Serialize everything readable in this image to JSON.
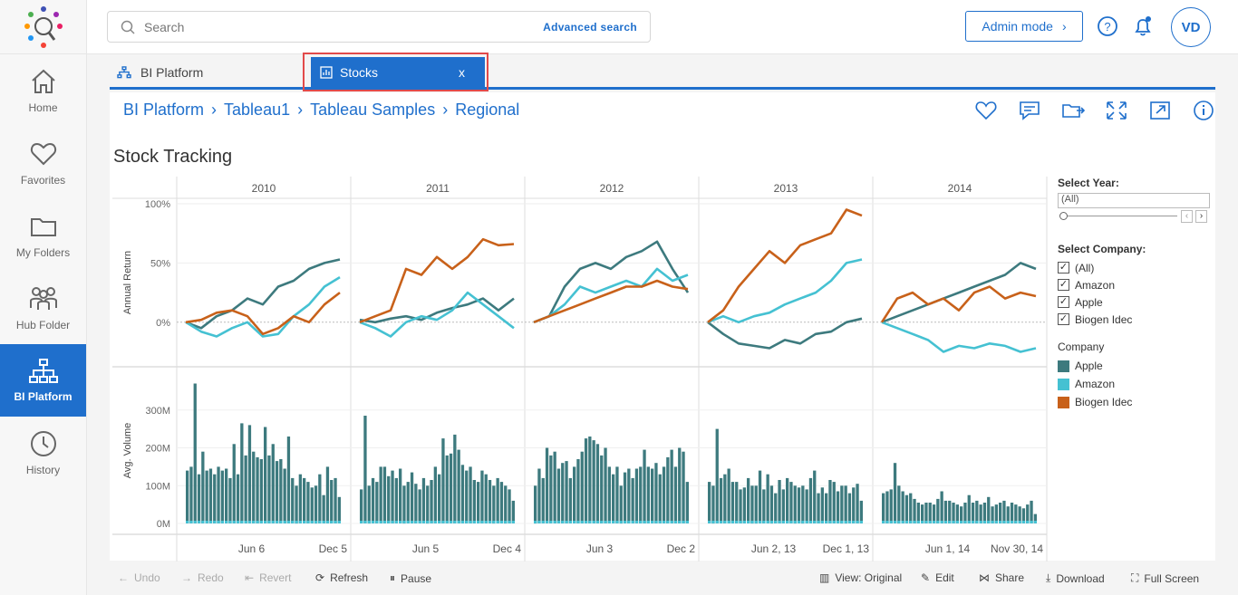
{
  "sidebar": {
    "items": [
      {
        "label": "Home",
        "icon": "home-icon"
      },
      {
        "label": "Favorites",
        "icon": "heart-icon"
      },
      {
        "label": "My Folders",
        "icon": "folder-icon"
      },
      {
        "label": "Hub Folder",
        "icon": "people-icon"
      },
      {
        "label": "BI Platform",
        "icon": "hierarchy-icon",
        "active": true
      },
      {
        "label": "History",
        "icon": "clock-icon"
      }
    ]
  },
  "search": {
    "placeholder": "Search",
    "advanced": "Advanced search"
  },
  "header": {
    "admin_mode": "Admin mode",
    "avatar": "VD"
  },
  "tabs": [
    {
      "label": "BI Platform"
    },
    {
      "label": "Stocks",
      "close": "x"
    }
  ],
  "breadcrumb": [
    "BI Platform",
    "Tableau1",
    "Tableau Samples",
    "Regional"
  ],
  "dashboard": {
    "title": "Stock Tracking",
    "filters": {
      "year_label": "Select Year:",
      "year_value": "(All)",
      "company_label": "Select Company:",
      "company_options": [
        "(All)",
        "Amazon",
        "Apple",
        "Biogen Idec"
      ],
      "legend_title": "Company",
      "legend": [
        {
          "name": "Apple",
          "color": "#3d7a7e"
        },
        {
          "name": "Amazon",
          "color": "#45c1d2"
        },
        {
          "name": "Biogen Idec",
          "color": "#c8611a"
        }
      ]
    }
  },
  "chart_data": [
    {
      "type": "line",
      "ylabel": "Annual Return",
      "yticks": [
        "100%",
        "50%",
        "0%"
      ],
      "ylim": [
        -0.3,
        1.0
      ],
      "columns": [
        "2010",
        "2011",
        "2012",
        "2013",
        "2014"
      ],
      "series": [
        {
          "name": "Apple",
          "color": "#3d7a7e",
          "values": [
            [
              0,
              -0.05,
              0.05,
              0.1,
              0.2,
              0.15,
              0.3,
              0.35,
              0.45,
              0.5,
              0.53
            ],
            [
              0.02,
              0.0,
              0.03,
              0.05,
              0.02,
              0.08,
              0.12,
              0.15,
              0.2,
              0.1,
              0.2
            ],
            [
              0,
              0.05,
              0.3,
              0.45,
              0.5,
              0.45,
              0.55,
              0.6,
              0.68,
              0.45,
              0.25
            ],
            [
              0,
              -0.1,
              -0.18,
              -0.2,
              -0.22,
              -0.15,
              -0.18,
              -0.1,
              -0.08,
              0.0,
              0.03
            ],
            [
              0,
              0.05,
              0.1,
              0.15,
              0.2,
              0.25,
              0.3,
              0.35,
              0.4,
              0.5,
              0.45
            ]
          ]
        },
        {
          "name": "Amazon",
          "color": "#45c1d2",
          "values": [
            [
              0,
              -0.08,
              -0.12,
              -0.05,
              0.0,
              -0.12,
              -0.1,
              0.05,
              0.15,
              0.3,
              0.38
            ],
            [
              0,
              -0.05,
              -0.12,
              0.0,
              0.05,
              0.02,
              0.1,
              0.25,
              0.15,
              0.05,
              -0.05
            ],
            [
              0,
              0.05,
              0.15,
              0.3,
              0.25,
              0.3,
              0.35,
              0.3,
              0.45,
              0.35,
              0.4
            ],
            [
              0.0,
              0.05,
              0.0,
              0.05,
              0.08,
              0.15,
              0.2,
              0.25,
              0.35,
              0.5,
              0.53
            ],
            [
              0,
              -0.05,
              -0.1,
              -0.15,
              -0.25,
              -0.2,
              -0.22,
              -0.18,
              -0.2,
              -0.25,
              -0.22
            ]
          ]
        },
        {
          "name": "Biogen Idec",
          "color": "#c8611a",
          "values": [
            [
              0,
              0.02,
              0.08,
              0.1,
              0.05,
              -0.1,
              -0.05,
              0.05,
              0.0,
              0.15,
              0.25
            ],
            [
              0,
              0.05,
              0.1,
              0.45,
              0.4,
              0.55,
              0.45,
              0.55,
              0.7,
              0.65,
              0.66
            ],
            [
              0,
              0.05,
              0.1,
              0.15,
              0.2,
              0.25,
              0.3,
              0.3,
              0.35,
              0.3,
              0.28
            ],
            [
              0,
              0.1,
              0.3,
              0.45,
              0.6,
              0.5,
              0.65,
              0.7,
              0.75,
              0.95,
              0.9
            ],
            [
              0,
              0.2,
              0.25,
              0.15,
              0.2,
              0.1,
              0.25,
              0.3,
              0.2,
              0.25,
              0.22
            ]
          ]
        }
      ]
    },
    {
      "type": "bar",
      "ylabel": "Avg. Volume",
      "yticks": [
        "300M",
        "200M",
        "100M",
        "0M"
      ],
      "ylim": [
        0,
        400
      ],
      "columns": [
        {
          "year": "2010",
          "xticks": [
            "Jun 6",
            "Dec 5"
          ],
          "values": [
            140,
            150,
            370,
            130,
            190,
            140,
            145,
            130,
            150,
            140,
            145,
            120,
            210,
            130,
            265,
            180,
            260,
            190,
            175,
            170,
            255,
            180,
            210,
            165,
            170,
            145,
            230,
            120,
            100,
            130,
            120,
            110,
            95,
            100,
            130,
            75,
            150,
            115,
            120,
            70
          ]
        },
        {
          "year": "2011",
          "xticks": [
            "Jun 5",
            "Dec 4"
          ],
          "values": [
            90,
            285,
            100,
            120,
            110,
            150,
            150,
            125,
            140,
            120,
            145,
            100,
            110,
            135,
            105,
            90,
            120,
            100,
            115,
            150,
            130,
            225,
            180,
            185,
            235,
            195,
            155,
            140,
            150,
            115,
            110,
            140,
            130,
            115,
            100,
            120,
            110,
            100,
            90,
            60
          ]
        },
        {
          "year": "2012",
          "xticks": [
            "Jun 3",
            "Dec 2"
          ],
          "values": [
            100,
            145,
            120,
            200,
            180,
            190,
            145,
            160,
            165,
            120,
            150,
            170,
            190,
            225,
            230,
            220,
            210,
            180,
            200,
            150,
            130,
            150,
            100,
            135,
            145,
            120,
            145,
            150,
            195,
            150,
            145,
            160,
            130,
            150,
            175,
            195,
            150,
            200,
            190,
            110
          ]
        },
        {
          "year": "2013",
          "xticks": [
            "Jun 2, 13",
            "Dec 1, 13"
          ],
          "values": [
            110,
            100,
            250,
            120,
            130,
            145,
            110,
            110,
            90,
            95,
            120,
            100,
            100,
            140,
            90,
            130,
            100,
            80,
            115,
            90,
            120,
            110,
            100,
            95,
            100,
            90,
            120,
            140,
            80,
            95,
            80,
            115,
            110,
            85,
            100,
            100,
            80,
            95,
            105,
            60
          ]
        },
        {
          "year": "2014",
          "xticks": [
            "Jun 1, 14",
            "Nov 30, 14"
          ],
          "values": [
            80,
            85,
            90,
            160,
            100,
            85,
            75,
            80,
            65,
            55,
            50,
            55,
            55,
            50,
            65,
            85,
            60,
            60,
            55,
            50,
            45,
            55,
            75,
            55,
            60,
            50,
            55,
            70,
            45,
            50,
            55,
            60,
            45,
            55,
            50,
            45,
            40,
            50,
            60,
            25
          ]
        }
      ]
    }
  ],
  "bottombar": {
    "undo": "Undo",
    "redo": "Redo",
    "revert": "Revert",
    "refresh": "Refresh",
    "pause": "Pause",
    "view": "View: Original",
    "edit": "Edit",
    "share": "Share",
    "download": "Download",
    "fullscreen": "Full Screen"
  }
}
